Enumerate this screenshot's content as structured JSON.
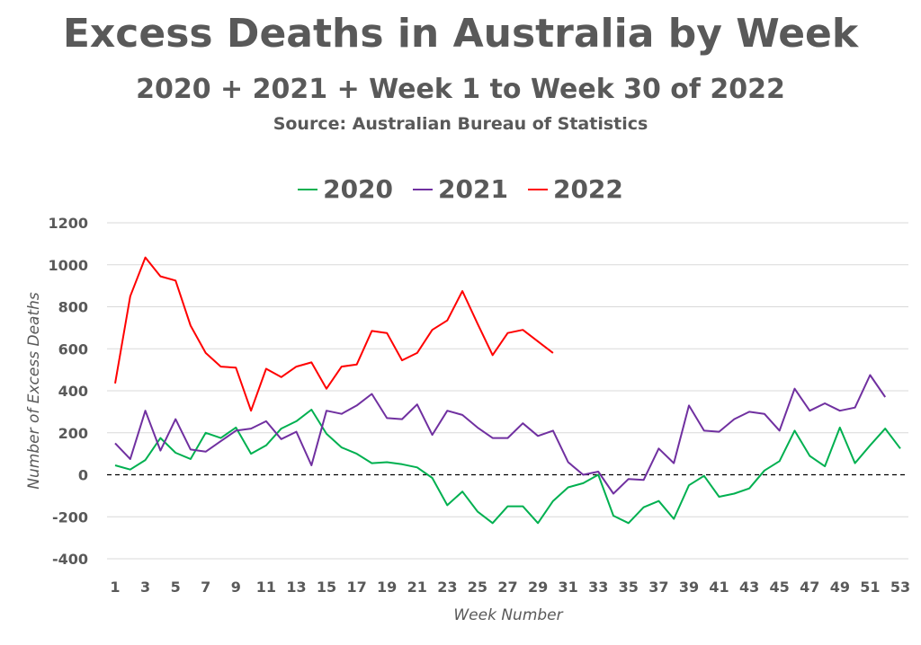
{
  "chart_data": {
    "type": "line",
    "title": "Excess Deaths in Australia by Week",
    "subtitle": "2020 + 2021 + Week 1 to Week 30 of 2022",
    "source": "Source: Australian Bureau of Statistics",
    "xlabel": "Week Number",
    "ylabel": "Number of Excess Deaths",
    "ylim": [
      -400,
      1200
    ],
    "yticks": [
      -400,
      -200,
      0,
      200,
      400,
      600,
      800,
      1000,
      1200
    ],
    "yticks_labels": [
      "-400",
      "-200",
      "0",
      "200",
      "400",
      "600",
      "800",
      "1000",
      "1200"
    ],
    "xlim": [
      1,
      53
    ],
    "xticks": [
      1,
      3,
      5,
      7,
      9,
      11,
      13,
      15,
      17,
      19,
      21,
      23,
      25,
      27,
      29,
      31,
      33,
      35,
      37,
      39,
      41,
      43,
      45,
      47,
      49,
      51,
      53
    ],
    "xticks_labels": [
      "1",
      "3",
      "5",
      "7",
      "9",
      "11",
      "13",
      "15",
      "17",
      "19",
      "21",
      "23",
      "25",
      "27",
      "29",
      "31",
      "33",
      "35",
      "37",
      "39",
      "41",
      "43",
      "45",
      "47",
      "49",
      "51",
      "53"
    ],
    "grid": "horizontal",
    "zero_line": "dashed",
    "legend_position": "top",
    "series": [
      {
        "name": "2020",
        "color": "#00b050",
        "values": [
          45,
          25,
          70,
          175,
          105,
          75,
          200,
          175,
          225,
          100,
          140,
          220,
          255,
          310,
          195,
          130,
          100,
          55,
          60,
          50,
          35,
          -15,
          -145,
          -80,
          -175,
          -230,
          -150,
          -150,
          -230,
          -125,
          -60,
          -40,
          0,
          -195,
          -230,
          -155,
          -125,
          -210,
          -50,
          -5,
          -105,
          -90,
          -65,
          20,
          65,
          210,
          90,
          40,
          225,
          55,
          140,
          220,
          125
        ]
      },
      {
        "name": "2021",
        "color": "#7030a0",
        "values": [
          150,
          75,
          305,
          115,
          265,
          120,
          110,
          160,
          210,
          220,
          255,
          170,
          205,
          45,
          305,
          290,
          330,
          385,
          270,
          265,
          335,
          190,
          305,
          285,
          225,
          175,
          175,
          245,
          185,
          210,
          60,
          0,
          15,
          -90,
          -20,
          -25,
          125,
          55,
          330,
          210,
          205,
          265,
          300,
          290,
          210,
          410,
          305,
          340,
          305,
          320,
          475,
          370
        ]
      },
      {
        "name": "2022",
        "color": "#ff0000",
        "values": [
          435,
          850,
          1035,
          945,
          925,
          710,
          580,
          515,
          510,
          305,
          505,
          465,
          515,
          535,
          410,
          515,
          525,
          685,
          675,
          545,
          580,
          690,
          735,
          875,
          720,
          570,
          675,
          690,
          635,
          580
        ]
      }
    ]
  }
}
